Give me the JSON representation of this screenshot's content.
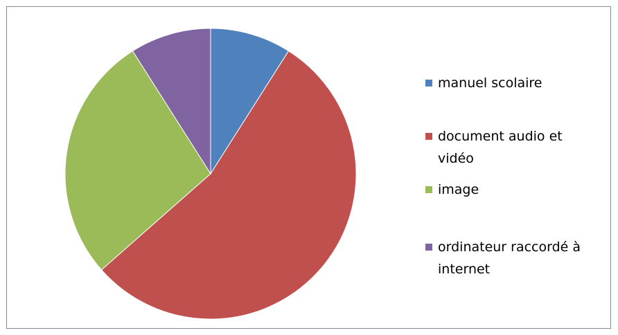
{
  "chart_data": {
    "type": "pie",
    "categories": [
      "manuel scolaire",
      "document audio et vidéo",
      "image",
      "ordinateur raccordé à internet"
    ],
    "values": [
      9,
      54.5,
      27.5,
      9
    ],
    "colors": [
      "#4f81bd",
      "#c0504d",
      "#9bbb59",
      "#8064a2"
    ],
    "legend": "right"
  }
}
